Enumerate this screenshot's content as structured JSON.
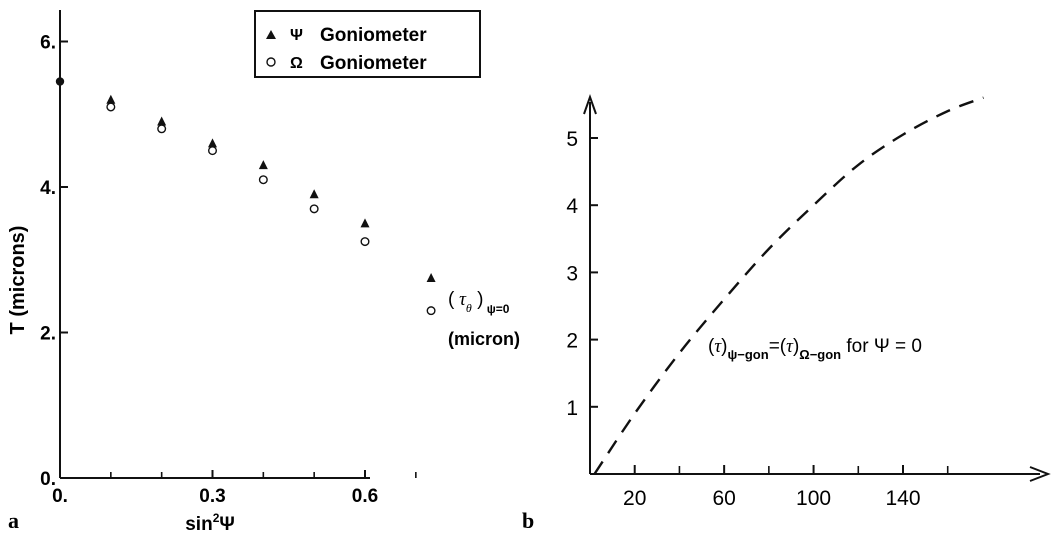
{
  "chart_data": [
    {
      "panel_label": "a",
      "type": "scatter",
      "xlabel": "sin²Ψ",
      "ylabel": "T  (microns)",
      "xlim": [
        0,
        0.75
      ],
      "ylim": [
        0,
        7.5
      ],
      "xticks": [
        {
          "value": 0,
          "label": "0."
        },
        {
          "value": 0.3,
          "label": "0.3"
        },
        {
          "value": 0.6,
          "label": "0.6"
        }
      ],
      "xticks_minor": [
        0.1,
        0.2,
        0.4,
        0.5,
        0.7
      ],
      "yticks": [
        {
          "value": 0,
          "label": "0."
        },
        {
          "value": 2,
          "label": "2."
        },
        {
          "value": 4,
          "label": "4."
        },
        {
          "value": 6,
          "label": "6."
        }
      ],
      "legend": {
        "placement": "top-right",
        "entries": [
          {
            "marker": "triangle",
            "symbol": "Ψ",
            "text": "Goniometer"
          },
          {
            "marker": "circle",
            "symbol": "Ω",
            "text": "Goniometer"
          }
        ]
      },
      "series": [
        {
          "marker": "triangle",
          "x": [
            0.1,
            0.2,
            0.3,
            0.4,
            0.5,
            0.6,
            0.73
          ],
          "y": [
            5.2,
            4.9,
            4.6,
            4.3,
            3.9,
            3.5,
            2.75
          ]
        },
        {
          "marker": "circle",
          "x": [
            0.1,
            0.2,
            0.3,
            0.4,
            0.5,
            0.6,
            0.73
          ],
          "y": [
            5.1,
            4.8,
            4.5,
            4.1,
            3.7,
            3.25,
            2.3
          ]
        }
      ],
      "shared_point": {
        "x": 0,
        "y": 5.45
      }
    },
    {
      "panel_label": "b",
      "type": "line",
      "line_style": "dashed",
      "ylabel_lines": [
        "(τθ)ψ=0",
        "(micron)"
      ],
      "xlim": [
        0,
        180
      ],
      "ylim": [
        0,
        6
      ],
      "xticks": [
        {
          "value": 20,
          "label": "20"
        },
        {
          "value": 60,
          "label": "60"
        },
        {
          "value": 100,
          "label": "100"
        },
        {
          "value": 140,
          "label": "140"
        }
      ],
      "xticks_minor": [
        40,
        80,
        120,
        160
      ],
      "yticks": [
        {
          "value": 1,
          "label": "1"
        },
        {
          "value": 2,
          "label": "2"
        },
        {
          "value": 3,
          "label": "3"
        },
        {
          "value": 4,
          "label": "4"
        },
        {
          "value": 5,
          "label": "5"
        }
      ],
      "annotation": "(τ)ψ−gon = (τ)Ω−gon for Ψ = 0",
      "series": [
        {
          "x": [
            2,
            20,
            40,
            60,
            80,
            100,
            120,
            140,
            160,
            176
          ],
          "y": [
            0,
            0.9,
            1.8,
            2.6,
            3.35,
            4.0,
            4.6,
            5.05,
            5.4,
            5.6
          ]
        }
      ]
    }
  ]
}
